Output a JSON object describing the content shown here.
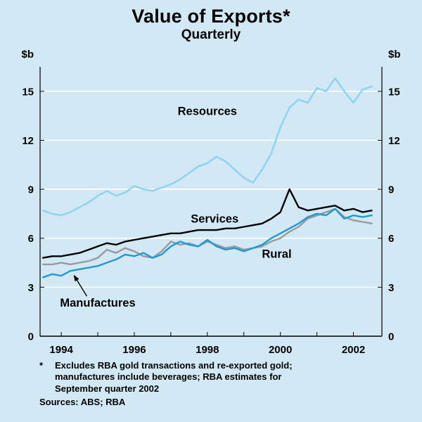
{
  "page": {
    "title": "Value of Exports*",
    "subtitle": "Quarterly",
    "y_unit": "$b",
    "footnote_marker": "*",
    "footnote_lines": [
      "Excludes RBA gold transactions and re-exported gold;",
      "manufactures include beverages; RBA estimates for",
      "September quarter 2002"
    ],
    "sources": "Sources: ABS; RBA"
  },
  "chart_data": {
    "type": "line",
    "title": "Value of Exports*",
    "subtitle": "Quarterly",
    "ylabel": "$b",
    "ylim": [
      0,
      16.5
    ],
    "yticks": [
      0,
      3,
      6,
      9,
      12,
      15
    ],
    "xlim": [
      1993.42,
      2002.78
    ],
    "xtick_positions": [
      1994,
      1996,
      1998,
      2000,
      2002
    ],
    "xtick_labels": [
      "1994",
      "1996",
      "1998",
      "2000",
      "2002"
    ],
    "year_ticks": [
      1994,
      1995,
      1996,
      1997,
      1998,
      1999,
      2000,
      2001,
      2002
    ],
    "grid": true,
    "grid_color": "#ffffff",
    "x_start": 1993.5,
    "x_step": 0.25,
    "series": [
      {
        "name": "Resources",
        "color": "#92d3f0",
        "values": [
          7.7,
          7.5,
          7.4,
          7.6,
          7.9,
          8.2,
          8.6,
          8.9,
          8.6,
          8.8,
          9.2,
          9.0,
          8.9,
          9.1,
          9.3,
          9.6,
          10.0,
          10.4,
          10.6,
          11.0,
          10.7,
          10.2,
          9.7,
          9.4,
          10.2,
          11.2,
          12.8,
          14.0,
          14.5,
          14.3,
          15.2,
          15.0,
          15.8,
          15.0,
          14.3,
          15.1,
          15.3
        ]
      },
      {
        "name": "Services",
        "color": "#000000",
        "values": [
          4.8,
          4.9,
          4.9,
          5.0,
          5.1,
          5.3,
          5.5,
          5.7,
          5.6,
          5.8,
          5.9,
          6.0,
          6.1,
          6.2,
          6.3,
          6.3,
          6.4,
          6.5,
          6.5,
          6.5,
          6.6,
          6.6,
          6.7,
          6.8,
          6.9,
          7.2,
          7.6,
          9.0,
          7.9,
          7.7,
          7.8,
          7.9,
          8.0,
          7.7,
          7.8,
          7.6,
          7.7
        ]
      },
      {
        "name": "Rural",
        "color": "#9a9a9a",
        "values": [
          4.4,
          4.4,
          4.5,
          4.4,
          4.5,
          4.6,
          4.8,
          5.3,
          5.1,
          5.4,
          5.2,
          4.9,
          4.8,
          5.2,
          5.8,
          5.6,
          5.7,
          5.5,
          5.8,
          5.6,
          5.4,
          5.5,
          5.3,
          5.4,
          5.5,
          5.8,
          6.0,
          6.4,
          6.7,
          7.2,
          7.4,
          7.6,
          7.8,
          7.3,
          7.1,
          7.0,
          6.9
        ]
      },
      {
        "name": "Manufactures",
        "color": "#1f9ad1",
        "values": [
          3.6,
          3.8,
          3.7,
          4.0,
          4.1,
          4.2,
          4.3,
          4.5,
          4.7,
          5.0,
          4.9,
          5.1,
          4.8,
          5.0,
          5.5,
          5.8,
          5.6,
          5.5,
          5.9,
          5.5,
          5.3,
          5.4,
          5.2,
          5.4,
          5.6,
          6.0,
          6.3,
          6.6,
          6.9,
          7.3,
          7.5,
          7.4,
          7.8,
          7.2,
          7.4,
          7.3,
          7.4
        ]
      }
    ]
  }
}
